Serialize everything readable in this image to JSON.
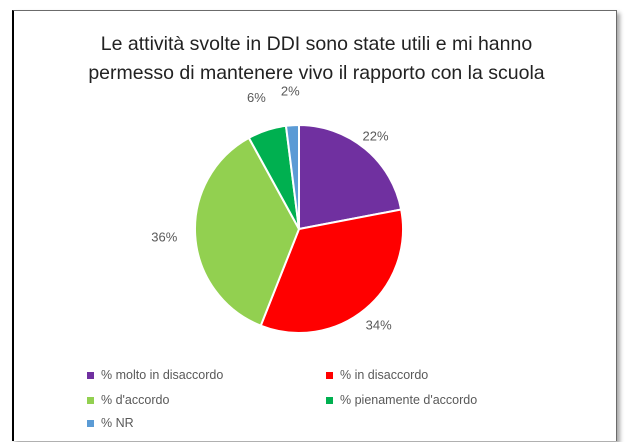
{
  "chart_data": {
    "type": "pie",
    "title": "Le attività svolte in DDI sono state utili e mi hanno permesso di mantenere vivo il rapporto con la scuola",
    "title_lines": [
      "Le attività svolte in DDI  sono state utili e mi hanno",
      "permesso di mantenere vivo il rapporto con la scuola"
    ],
    "slices": [
      {
        "label": "% molto in disaccordo",
        "value": 22,
        "display": "22%",
        "color": "#7030A0"
      },
      {
        "label": "% in disaccordo",
        "value": 34,
        "display": "34%",
        "color": "#FF0000"
      },
      {
        "label": "% d'accordo",
        "value": 36,
        "display": "36%",
        "color": "#92D050"
      },
      {
        "label": "% pienamente d'accordo",
        "value": 6,
        "display": "6%",
        "color": "#00B050"
      },
      {
        "label": "% NR",
        "value": 2,
        "display": "2%",
        "color": "#5B9BD5"
      }
    ],
    "start_angle_deg": 0,
    "direction": "clockwise",
    "legend_position": "bottom"
  }
}
